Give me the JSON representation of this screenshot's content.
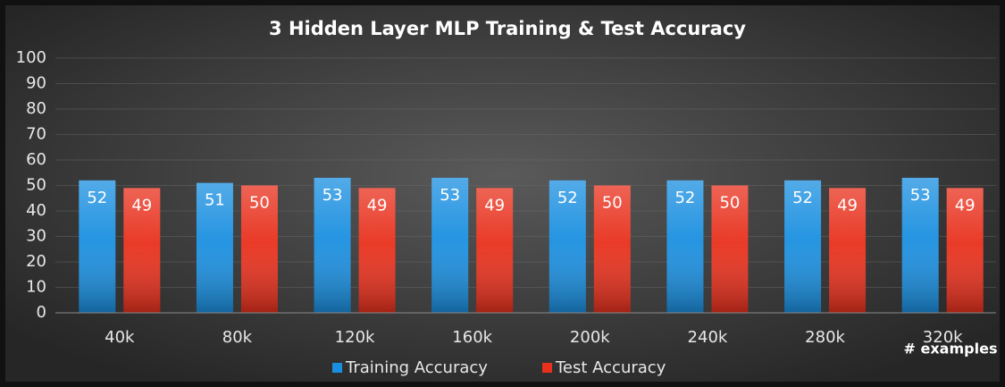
{
  "chart_data": {
    "type": "bar",
    "title": "3 Hidden Layer MLP Training & Test Accuracy",
    "x_label": "# examples",
    "categories": [
      "40k",
      "80k",
      "120k",
      "160k",
      "200k",
      "240k",
      "280k",
      "320k"
    ],
    "series": [
      {
        "name": "Training Accuracy",
        "color": "#1a8fe0",
        "values": [
          52,
          51,
          53,
          53,
          52,
          52,
          52,
          53
        ]
      },
      {
        "name": "Test Accuracy",
        "color": "#e8301c",
        "values": [
          49,
          50,
          49,
          49,
          50,
          50,
          49,
          49
        ]
      }
    ],
    "ylim": [
      0,
      100
    ],
    "yticks": [
      0,
      10,
      20,
      30,
      40,
      50,
      60,
      70,
      80,
      90,
      100
    ],
    "grid": true,
    "legend": "bottom"
  }
}
